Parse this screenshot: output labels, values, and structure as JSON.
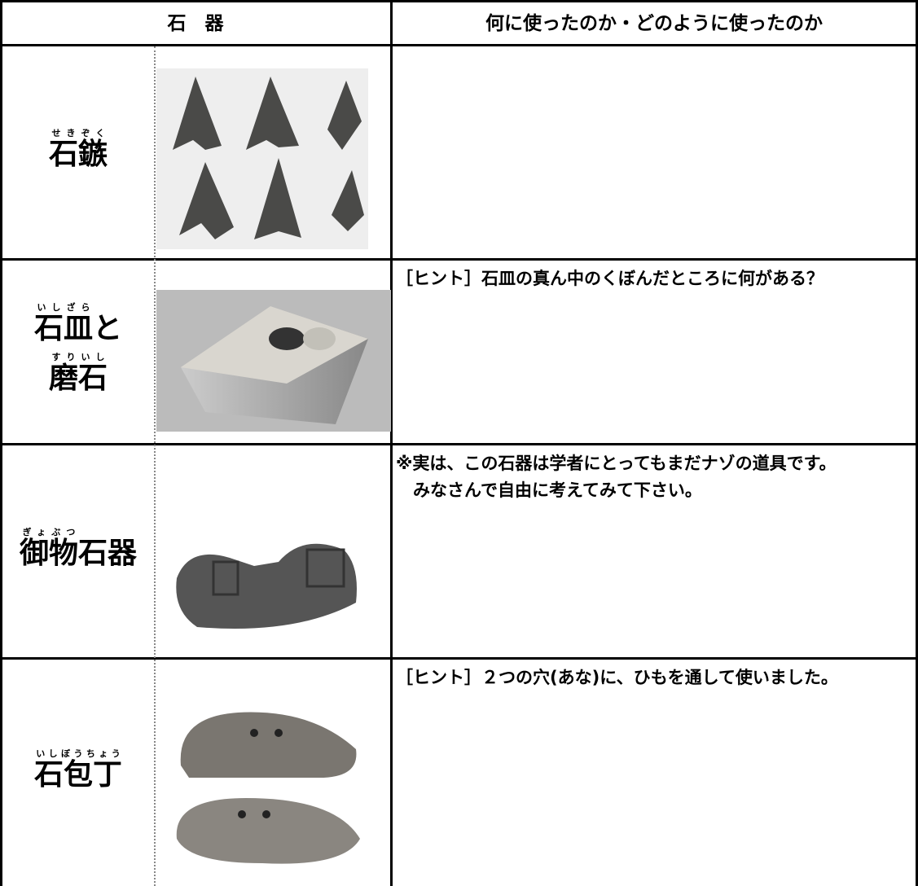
{
  "header": {
    "tools": "石　器",
    "usage": "何に使ったのか・どのように使ったのか"
  },
  "rows": [
    {
      "label": [
        [
          {
            "base": "石",
            "ruby": "せき"
          },
          {
            "base": "鏃",
            "ruby": "ぞく"
          }
        ]
      ],
      "note": []
    },
    {
      "label": [
        [
          {
            "base": "石皿",
            "ruby": "いしざら"
          },
          {
            "base": "と"
          }
        ],
        [
          {
            "base": "磨石",
            "ruby": "すりいし"
          }
        ]
      ],
      "note": [
        "［ヒント］石皿の真ん中のくぼんだところに何がある？"
      ]
    },
    {
      "label": [
        [
          {
            "base": "御物",
            "ruby": "ぎょぶつ"
          },
          {
            "base": "石器"
          }
        ]
      ],
      "note": [
        "※実は、この石器は学者にとってもまだナゾの道具です。",
        "　みなさんで自由に考えてみて下さい。"
      ]
    },
    {
      "label": [
        [
          {
            "base": "石包丁",
            "ruby": "いしぼうちょう"
          }
        ]
      ],
      "note": [
        "［ヒント］２つの穴(あな)に、ひもを通して使いました。"
      ]
    }
  ]
}
